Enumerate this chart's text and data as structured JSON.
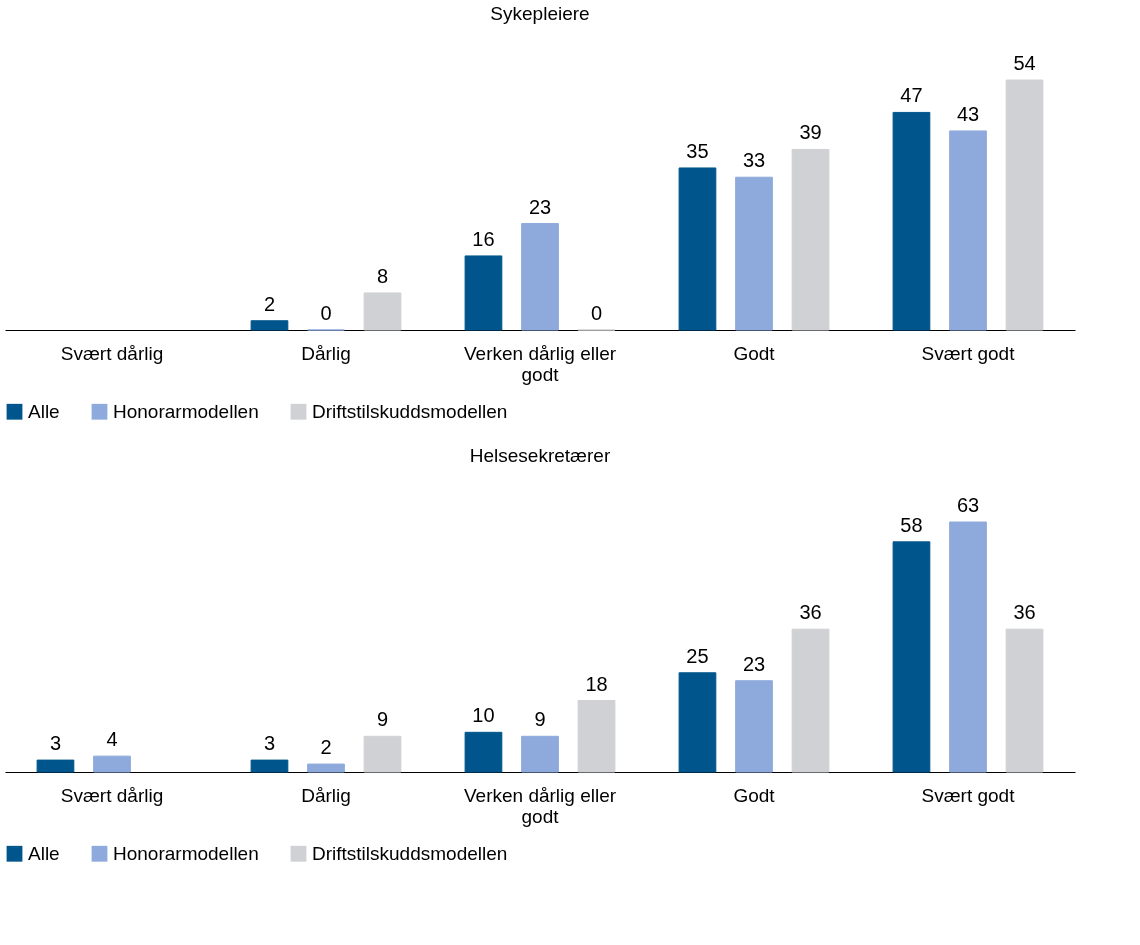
{
  "chart_data": [
    {
      "type": "bar",
      "title": "Sykepleiere",
      "categories": [
        "Svært dårlig",
        "Dårlig",
        "Verken dårlig eller godt",
        "Godt",
        "Svært godt"
      ],
      "series": [
        {
          "name": "Alle",
          "color": "#00568c",
          "values": [
            null,
            2,
            16,
            35,
            47
          ]
        },
        {
          "name": "Honorarmodellen",
          "color": "#8eaadc",
          "values": [
            null,
            0,
            23,
            33,
            43
          ]
        },
        {
          "name": "Driftstilskuddsmodellen",
          "color": "#d0d1d4",
          "values": [
            null,
            8,
            0,
            39,
            54
          ]
        }
      ],
      "data_labels": true,
      "legend": "bottom",
      "grid": false,
      "tick_labels": "x"
    },
    {
      "type": "bar",
      "title": "Helsesekretærer",
      "categories": [
        "Svært dårlig",
        "Dårlig",
        "Verken dårlig eller godt",
        "Godt",
        "Svært godt"
      ],
      "series": [
        {
          "name": "Alle",
          "color": "#00568c",
          "values": [
            3,
            3,
            10,
            25,
            58
          ]
        },
        {
          "name": "Honorarmodellen",
          "color": "#8eaadc",
          "values": [
            4,
            2,
            9,
            23,
            63
          ]
        },
        {
          "name": "Driftstilskuddsmodellen",
          "color": "#d0d1d4",
          "values": [
            null,
            9,
            18,
            36,
            36
          ]
        }
      ],
      "data_labels": true,
      "legend": "bottom",
      "grid": false,
      "tick_labels": "x"
    }
  ]
}
